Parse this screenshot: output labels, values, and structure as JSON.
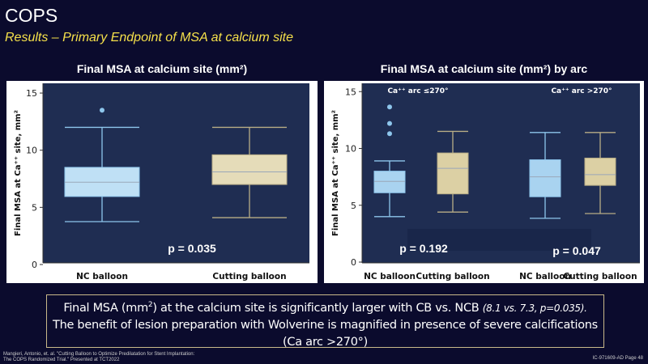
{
  "header": {
    "title": "COPS",
    "subtitle": "Results – Primary Endpoint of MSA at calcium site"
  },
  "chart_data": [
    {
      "type": "box",
      "title": "Final MSA at calcium site (mm²)",
      "ylabel": "Final MSA at Ca⁺⁺ site, mm²",
      "ylim": [
        0,
        15
      ],
      "yticks": [
        "0",
        "5",
        "10",
        "15"
      ],
      "categories": [
        "NC balloon",
        "Cutting balloon"
      ],
      "boxes": [
        {
          "category": "NC balloon",
          "min": 3.75,
          "q1": 5.95,
          "median": 7.2,
          "q3": 8.5,
          "max": 12.0,
          "outliers": [
            13.5
          ],
          "color": "#bfe0f5"
        },
        {
          "category": "Cutting balloon",
          "min": 4.1,
          "q1": 7.0,
          "median": 8.1,
          "q3": 9.6,
          "max": 12.0,
          "outliers": [],
          "color": "#e5dcb9"
        }
      ],
      "annotations": [
        "p = 0.035"
      ]
    },
    {
      "type": "box",
      "title": "Final MSA at calcium site (mm²) by arc",
      "ylabel": "Final MSA at Ca⁺⁺ site, mm²",
      "ylim": [
        0,
        15
      ],
      "yticks": [
        "0",
        "5",
        "10",
        "15"
      ],
      "groups": [
        "Ca⁺⁺ arc ≤270°",
        "Ca⁺⁺ arc >270°"
      ],
      "categories": [
        "NC balloon",
        "Cutting balloon",
        "NC balloon",
        "Cutting balloon"
      ],
      "boxes": [
        {
          "group": "Ca⁺⁺ arc ≤270°",
          "category": "NC balloon",
          "min": 4.0,
          "q1": 6.1,
          "median": 7.1,
          "q3": 8.0,
          "max": 8.9,
          "outliers": [
            11.3,
            12.2,
            13.65
          ],
          "color": "#a9d3f0"
        },
        {
          "group": "Ca⁺⁺ arc ≤270°",
          "category": "Cutting balloon",
          "min": 4.4,
          "q1": 6.0,
          "median": 8.25,
          "q3": 9.6,
          "max": 11.5,
          "outliers": [],
          "color": "#dcd0a4"
        },
        {
          "group": "Ca⁺⁺ arc >270°",
          "category": "NC balloon",
          "min": 3.85,
          "q1": 5.75,
          "median": 7.5,
          "q3": 9.0,
          "max": 11.4,
          "outliers": [],
          "color": "#a9d3f0"
        },
        {
          "group": "Ca⁺⁺ arc >270°",
          "category": "Cutting balloon",
          "min": 4.27,
          "q1": 6.75,
          "median": 7.7,
          "q3": 9.15,
          "max": 11.4,
          "outliers": [],
          "color": "#dcd0a4"
        }
      ],
      "annotations": [
        "p = 0.192",
        "p = 0.047"
      ]
    }
  ],
  "summary": {
    "line1_pre": "Final MSA (mm",
    "line1_sup": "2",
    "line1_post": ") at the calcium site is significantly larger with CB vs. NCB ",
    "line1_italic": "(8.1 vs. 7.3, p=0.035).",
    "line2": "The benefit of lesion preparation with Wolverine is magnified in presence of severe calcifications (Ca arc >270°)"
  },
  "footer": {
    "citation_line1": "Mangieri, Antonio, et. al. \"Cutting Balloon to Optimize Predilatation for Stent Implantation:",
    "citation_line2": "The COPS Randomized Trial.\" Presented at TCT2022",
    "page_label": "IC-971609-AD Page 48"
  }
}
